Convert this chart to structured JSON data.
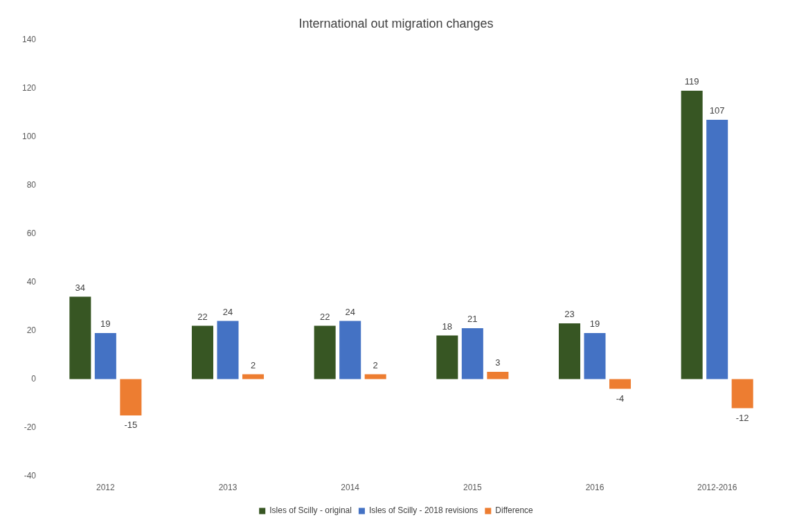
{
  "chart_data": {
    "type": "bar",
    "title": "International out migration changes",
    "categories": [
      "2012",
      "2013",
      "2014",
      "2015",
      "2016",
      "2012-2016"
    ],
    "series": [
      {
        "name": "Isles of Scilly - original",
        "color": "#375623",
        "values": [
          34,
          22,
          22,
          18,
          23,
          119
        ]
      },
      {
        "name": "Isles of Scilly - 2018 revisions",
        "color": "#4472c4",
        "values": [
          19,
          24,
          24,
          21,
          19,
          107
        ]
      },
      {
        "name": "Difference",
        "color": "#ed7d31",
        "values": [
          -15,
          2,
          2,
          3,
          -4,
          -12
        ]
      }
    ],
    "ylim": [
      -40,
      140
    ],
    "yticks": [
      -40,
      -20,
      0,
      20,
      40,
      60,
      80,
      100,
      120,
      140
    ],
    "grid": false,
    "legend": "bottom",
    "data_labels": true
  }
}
